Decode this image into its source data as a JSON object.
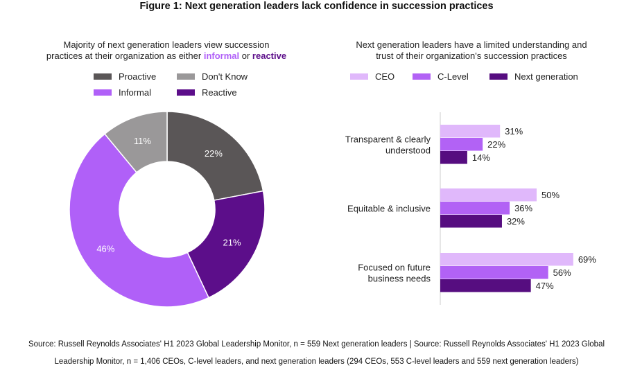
{
  "figure_title": "Figure 1: Next generation leaders lack confidence in succession practices",
  "colors": {
    "proactive": "#5a5657",
    "dont_know": "#9a9899",
    "informal": "#b060f8",
    "reactive": "#5c0e8a",
    "ceo": "#e0b8fb",
    "c_level": "#b262f5",
    "next_generation": "#560d80"
  },
  "left": {
    "title_line1": "Majority of next generation leaders view succession",
    "title_line2_prefix": "practices at their organization as either ",
    "title_informal": "informal",
    "title_or": " or ",
    "title_reactive": "reactive"
  },
  "right": {
    "title_line1": "Next generation leaders have a limited understanding and",
    "title_line2": "trust of their organization's succession practices"
  },
  "chart_data": [
    {
      "type": "pie",
      "style": "donut",
      "legend": [
        "Proactive",
        "Don't Know",
        "Informal",
        "Reactive"
      ],
      "slices": [
        {
          "name": "Proactive",
          "value": 22,
          "label": "22%",
          "color": "#5a5657"
        },
        {
          "name": "Reactive",
          "value": 21,
          "label": "21%",
          "color": "#5c0e8a"
        },
        {
          "name": "Informal",
          "value": 46,
          "label": "46%",
          "color": "#b060f8"
        },
        {
          "name": "Don't Know",
          "value": 11,
          "label": "11%",
          "color": "#9a9899"
        }
      ]
    },
    {
      "type": "bar",
      "orientation": "horizontal",
      "legend_placement": "top",
      "categories": [
        "Transparent & clearly understood",
        "Equitable & inclusive",
        "Focused on future business needs"
      ],
      "category_lines": [
        [
          "Transparent & clearly",
          "understood"
        ],
        [
          "Equitable & inclusive"
        ],
        [
          "Focused on future",
          "business needs"
        ]
      ],
      "series": [
        {
          "name": "CEO",
          "values": [
            31,
            50,
            69
          ],
          "labels": [
            "31%",
            "50%",
            "69%"
          ],
          "color": "#e0b8fb"
        },
        {
          "name": "C-Level",
          "values": [
            22,
            36,
            56
          ],
          "labels": [
            "22%",
            "36%",
            "56%"
          ],
          "color": "#b262f5"
        },
        {
          "name": "Next generation",
          "values": [
            14,
            32,
            47
          ],
          "labels": [
            "14%",
            "32%",
            "47%"
          ],
          "color": "#560d80"
        }
      ]
    }
  ],
  "source_line1": "Source: Russell Reynolds Associates' H1 2023 Global Leadership Monitor, n = 559 Next generation leaders | Source: Russell Reynolds Associates' H1 2023 Global",
  "source_line2": "Leadership Monitor, n = 1,406 CEOs, C-level leaders, and next generation leaders (294 CEOs, 553 C-level leaders and 559 next generation leaders)"
}
